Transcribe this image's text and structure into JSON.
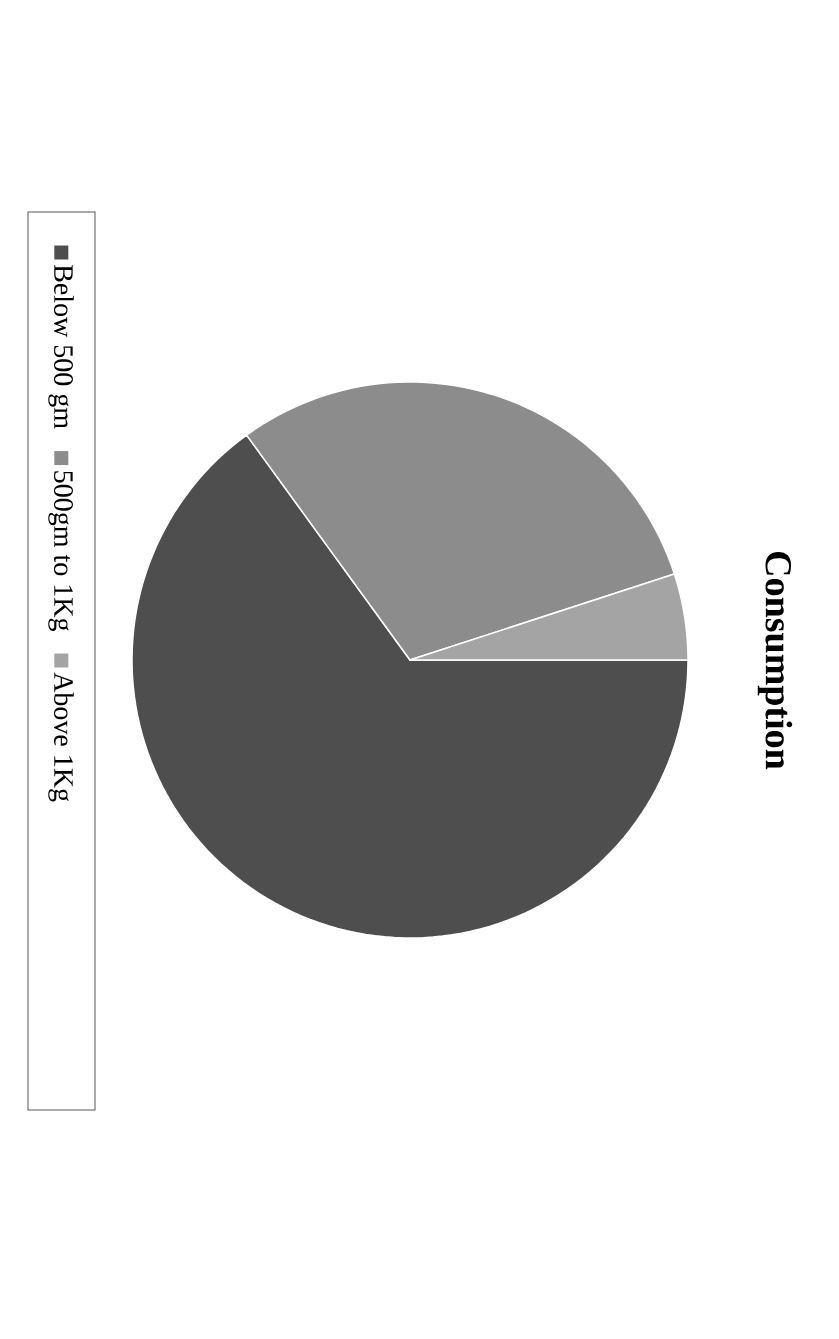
{
  "chart_data": {
    "type": "pie",
    "title": "Consumption",
    "categories": [
      "Below 500 gm",
      "500gm to 1Kg",
      "Above 1Kg"
    ],
    "values": [
      65,
      30,
      5
    ],
    "colors": [
      "#4e4e4e",
      "#8c8c8c",
      "#a4a4a4"
    ],
    "legend": "left"
  }
}
